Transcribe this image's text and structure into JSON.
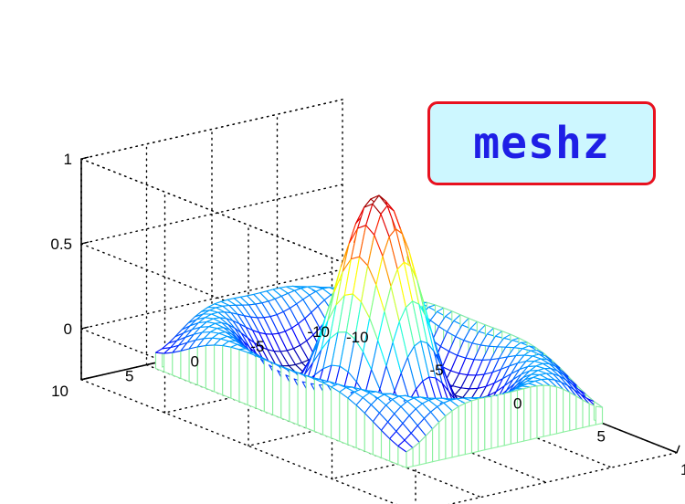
{
  "label": {
    "text": "meshz"
  },
  "chart_data": {
    "type": "mesh3d",
    "function": "z = sin(r)/r, r = sqrt(x^2 + y^2)",
    "x": [
      -7.5,
      7.5
    ],
    "y": [
      -7.5,
      7.5
    ],
    "grid_step": 0.5,
    "curtain": true,
    "colormap": "jet",
    "xlim": [
      -10,
      10
    ],
    "ylim": [
      -10,
      10
    ],
    "zlim": [
      -0.3,
      1
    ],
    "xticks": [
      "-10",
      "-5",
      "0",
      "5",
      "10"
    ],
    "yticks": [
      "-10",
      "-5",
      "0",
      "5",
      "10"
    ],
    "zticks": [
      "0",
      "0.5",
      "1"
    ],
    "grid": "on",
    "box": "off",
    "title": ""
  },
  "colors": {
    "curtain": "#8cf0a0",
    "label_background": "#cdf7ff",
    "label_border": "#e8111f",
    "label_text": "#1f1fe6"
  }
}
